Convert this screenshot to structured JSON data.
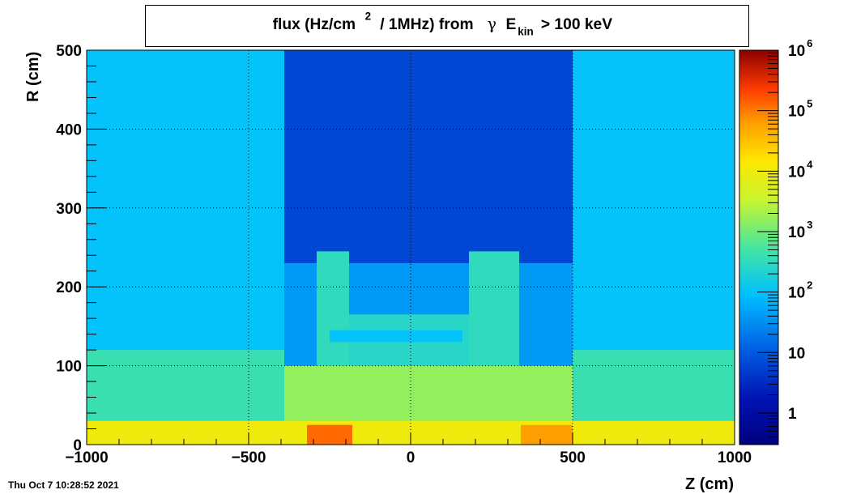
{
  "chart_data": {
    "type": "heatmap",
    "title": {
      "part1": "flux (Hz/cm",
      "sup": "2",
      "part2": " / 1MHz) from ",
      "gamma": "γ",
      "e": "E",
      "sub": "kin",
      "part3": " > 100 keV"
    },
    "xlabel": "Z (cm)",
    "ylabel": "R (cm)",
    "xlim": [
      -1000,
      1000
    ],
    "ylim": [
      0,
      500
    ],
    "x_ticks": [
      {
        "value": -1000,
        "label": "−1000"
      },
      {
        "value": -500,
        "label": "−500"
      },
      {
        "value": 0,
        "label": "0"
      },
      {
        "value": 500,
        "label": "500"
      },
      {
        "value": 1000,
        "label": "1000"
      }
    ],
    "y_ticks": [
      {
        "value": 0,
        "label": "0"
      },
      {
        "value": 100,
        "label": "100"
      },
      {
        "value": 200,
        "label": "200"
      },
      {
        "value": 300,
        "label": "300"
      },
      {
        "value": 400,
        "label": "400"
      },
      {
        "value": 500,
        "label": "500"
      }
    ],
    "grid": true,
    "colorbar": {
      "scale": "log",
      "range": [
        0.3,
        1000000
      ],
      "ticks": [
        {
          "value": 1,
          "base": "1",
          "exp": ""
        },
        {
          "value": 10,
          "base": "10",
          "exp": ""
        },
        {
          "value": 100,
          "base": "10",
          "exp": "2"
        },
        {
          "value": 1000,
          "base": "10",
          "exp": "3"
        },
        {
          "value": 10000,
          "base": "10",
          "exp": "4"
        },
        {
          "value": 100000,
          "base": "10",
          "exp": "5"
        },
        {
          "value": 1000000,
          "base": "10",
          "exp": "6"
        }
      ]
    },
    "regions": [
      {
        "z": [
          -1000,
          1000
        ],
        "r": [
          0,
          500
        ],
        "level": 2.0
      },
      {
        "z": [
          -390,
          500
        ],
        "r": [
          0,
          500
        ],
        "level": 0.8
      },
      {
        "z": [
          -1000,
          1000
        ],
        "r": [
          0,
          120
        ],
        "level": 2.6
      },
      {
        "z": [
          -390,
          500
        ],
        "r": [
          0,
          230
        ],
        "level": 1.6
      },
      {
        "z": [
          -290,
          -190
        ],
        "r": [
          0,
          245
        ],
        "level": 2.5
      },
      {
        "z": [
          180,
          335
        ],
        "r": [
          0,
          245
        ],
        "level": 2.5
      },
      {
        "z": [
          -190,
          180
        ],
        "r": [
          0,
          165
        ],
        "level": 2.4
      },
      {
        "z": [
          -250,
          160
        ],
        "r": [
          130,
          145
        ],
        "level": 2.0
      },
      {
        "z": [
          -390,
          500
        ],
        "r": [
          0,
          100
        ],
        "level": 3.2
      },
      {
        "z": [
          -1000,
          1000
        ],
        "r": [
          0,
          30
        ],
        "level": 4.0
      },
      {
        "z": [
          -320,
          -180
        ],
        "r": [
          0,
          25
        ],
        "level": 5.1
      },
      {
        "z": [
          340,
          500
        ],
        "r": [
          0,
          25
        ],
        "level": 4.8
      }
    ]
  },
  "timestamp": "Thu Oct  7 10:28:52 2021"
}
